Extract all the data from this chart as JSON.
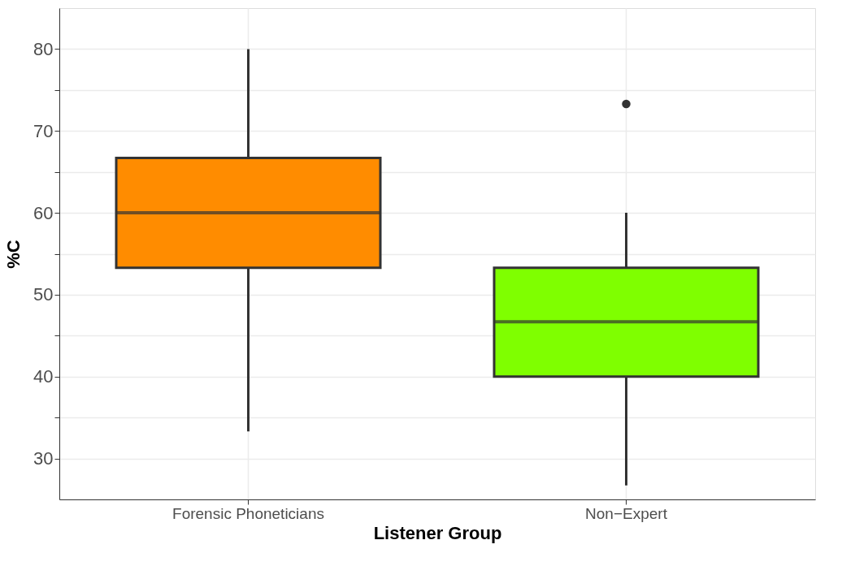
{
  "chart_data": {
    "type": "box",
    "xlabel": "Listener Group",
    "ylabel": "%C",
    "categories": [
      "Forensic Phoneticians",
      "Non−Expert"
    ],
    "colors": [
      "#ff8c00",
      "#7fff00"
    ],
    "boxes": [
      {
        "low": 33.3,
        "q1": 53.3,
        "median": 60,
        "q3": 66.7,
        "high": 80
      },
      {
        "low": 26.7,
        "q1": 40,
        "median": 46.7,
        "q3": 53.3,
        "high": 60,
        "outliers": [
          73.3
        ]
      }
    ],
    "ylim": [
      25,
      85
    ],
    "yticks": [
      30,
      {
        "value": 35,
        "label": null
      },
      40,
      {
        "value": 45,
        "label": null
      },
      50,
      {
        "value": 55,
        "label": null
      },
      60,
      {
        "value": 65,
        "label": null
      },
      70,
      {
        "value": 75,
        "label": null
      },
      80
    ],
    "grid": true
  }
}
